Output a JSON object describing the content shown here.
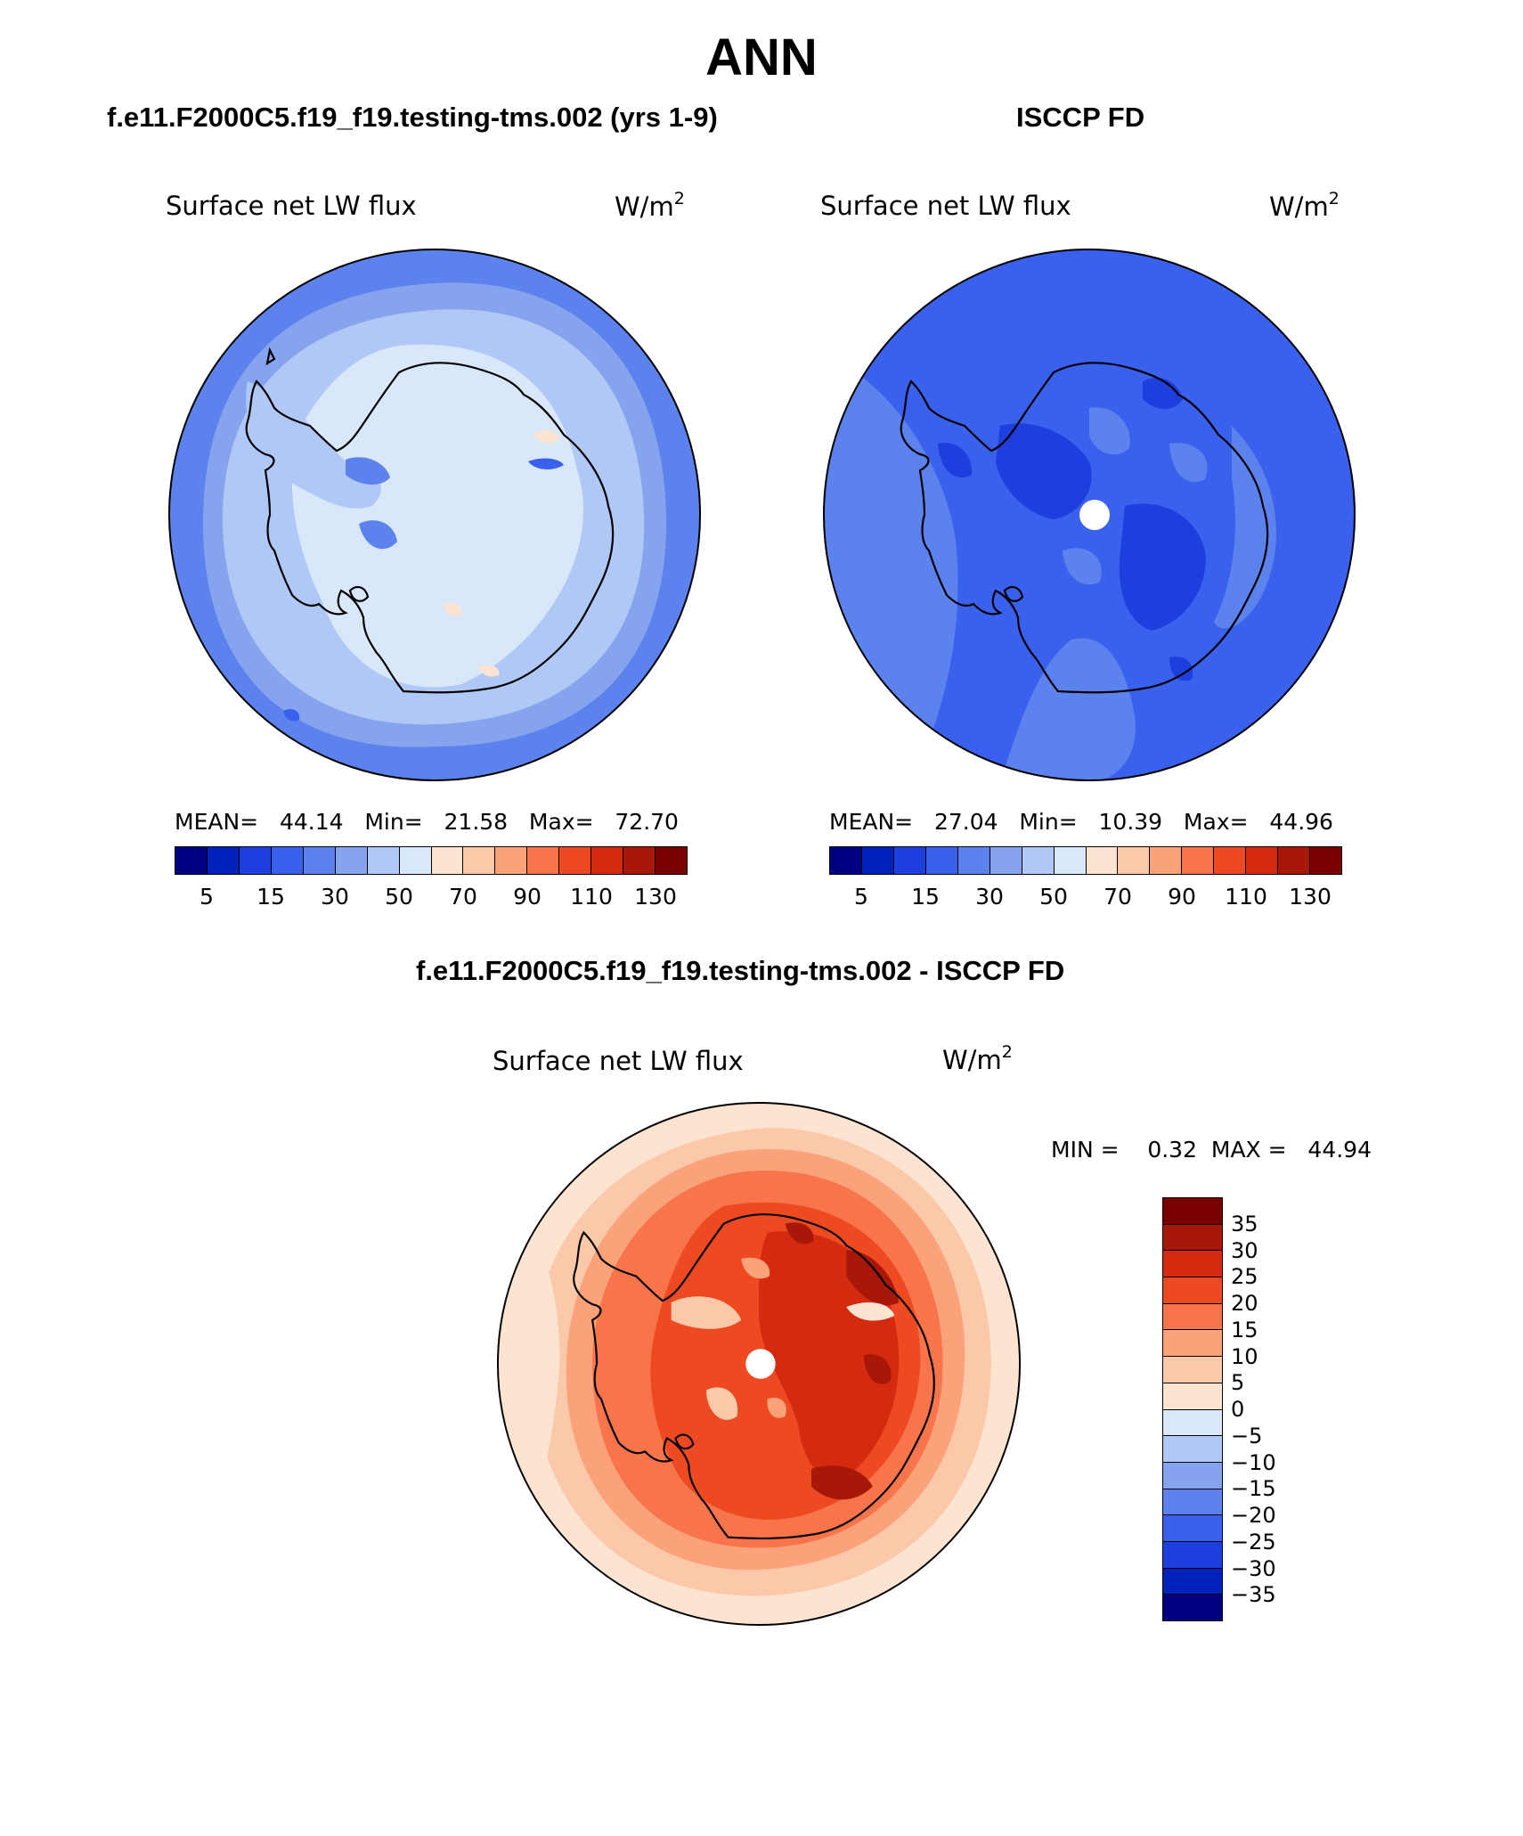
{
  "title": "ANN",
  "panels": {
    "model": {
      "header": "f.e11.F2000C5.f19_f19.testing-tms.002 (yrs 1-9)",
      "variable": "Surface net LW flux",
      "unit_base": "W/m",
      "unit_exp": "2",
      "stats": "MEAN=   44.14   Min=   21.58   Max=   72.70",
      "colorbar_ticks": [
        "5",
        "15",
        "30",
        "50",
        "70",
        "90",
        "110",
        "130"
      ]
    },
    "obs": {
      "header": "ISCCP FD",
      "variable": "Surface net LW flux",
      "unit_base": "W/m",
      "unit_exp": "2",
      "stats": "MEAN=   27.04   Min=   10.39   Max=   44.96",
      "colorbar_ticks": [
        "5",
        "15",
        "30",
        "50",
        "70",
        "90",
        "110",
        "130"
      ]
    },
    "diff": {
      "header": "f.e11.F2000C5.f19_f19.testing-tms.002 - ISCCP FD",
      "variable": "Surface net LW flux",
      "unit_base": "W/m",
      "unit_exp": "2",
      "stats": "MIN =    0.32  MAX =   44.94",
      "colorbar_labels": [
        "35",
        "30",
        "25",
        "20",
        "15",
        "10",
        "5",
        "0",
        "−5",
        "−10",
        "−15",
        "−20",
        "−25",
        "−30",
        "−35"
      ]
    }
  },
  "palettes": {
    "abs": [
      "#000080",
      "#0022bb",
      "#1c3fdd",
      "#3a60ee",
      "#5c82ee",
      "#86a4ee",
      "#b0c8f6",
      "#d8e8fa",
      "#fce4d0",
      "#fcc8aa",
      "#fca27a",
      "#f8744a",
      "#ee4a22",
      "#d42a10",
      "#a81808",
      "#7a0000"
    ],
    "diff": [
      "#7a0000",
      "#a81808",
      "#d42a10",
      "#ee4a22",
      "#f8744a",
      "#fca27a",
      "#fcc8aa",
      "#fce4d0",
      "#d8e8fa",
      "#b0c8f6",
      "#86a4ee",
      "#5c82ee",
      "#3a60ee",
      "#1c3fdd",
      "#0022bb",
      "#000080"
    ]
  }
}
